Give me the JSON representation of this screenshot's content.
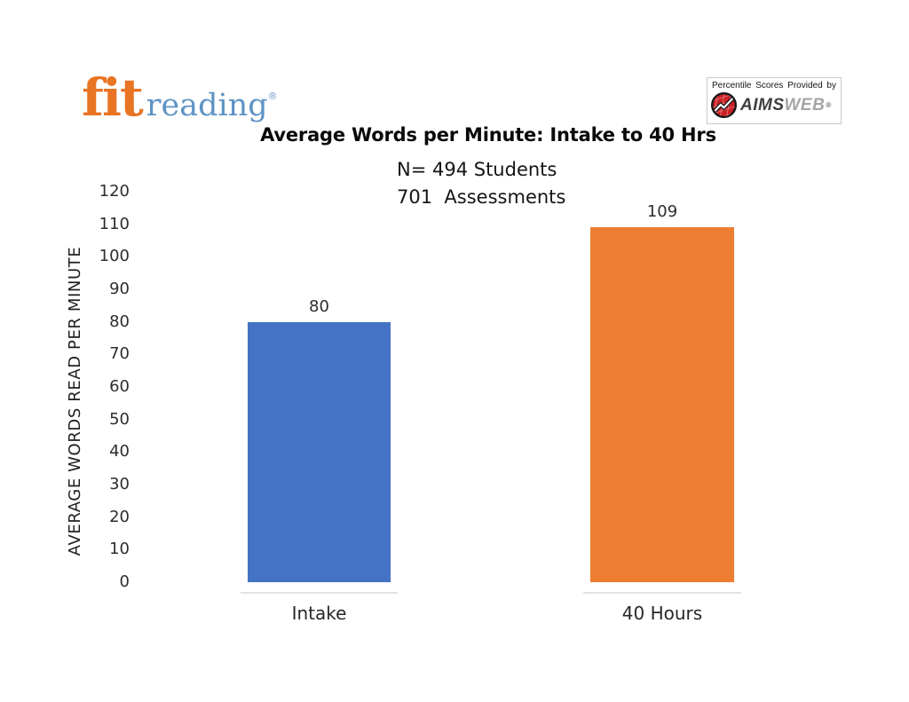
{
  "page": {
    "background": "#ffffff"
  },
  "header": {
    "logo": {
      "fit_text": "fit",
      "reading_text": "reading",
      "registered_mark": "®",
      "fit_color": "#e87424",
      "reading_color": "#5e93c5"
    },
    "provider": {
      "caption": "Percentile Scores Provided by",
      "brand_aims": "AIMS",
      "brand_web": "WEB",
      "registered_mark": "®",
      "icon": "trend-line-chart-icon",
      "icon_color": "#cb2026"
    }
  },
  "chart_data": {
    "type": "bar",
    "title": "Average Words per Minute: Intake to 40 Hrs",
    "subtitle_lines": [
      "N= 494 Students",
      "701  Assessments"
    ],
    "categories": [
      "Intake",
      "40 Hours"
    ],
    "values": [
      80,
      109
    ],
    "data_labels": [
      "80",
      "109"
    ],
    "bar_colors": [
      "#4472c4",
      "#ed7d31"
    ],
    "ylabel": "AVERAGE WORDS READ PER MINUTE",
    "xlabel": "",
    "ylim": [
      0,
      120
    ],
    "yticks": [
      0,
      10,
      20,
      30,
      40,
      50,
      60,
      70,
      80,
      90,
      100,
      110,
      120
    ],
    "grid": false,
    "legend_position": "none"
  }
}
